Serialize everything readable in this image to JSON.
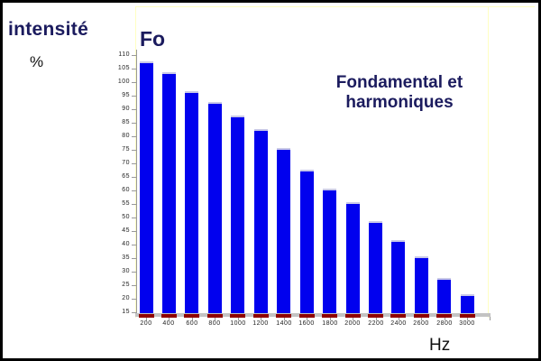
{
  "texts": {
    "y_axis_title": "intensité",
    "y_axis_unit": "%",
    "series_label": "Fo",
    "annotation": [
      "Fondamental et",
      "harmoniques"
    ],
    "x_axis_unit": "Hz"
  },
  "colors": {
    "page_bg": "#ffffff",
    "page_border": "#000000",
    "heading_navy": "#1b1b5e",
    "bar_fill": "#0101ee",
    "bar_cap": "#c9c9e8",
    "base_mark": "#8f0000",
    "baseline_gray": "#c3c3c3",
    "axis_line": "#999999",
    "plot_frame": "#ffffc2",
    "tick_label": "#222222"
  },
  "chart_data": {
    "type": "bar",
    "title": "Fondamental et harmoniques",
    "series_name": "Fo",
    "xlabel": "Hz",
    "ylabel": "intensité %",
    "categories": [
      "200",
      "400",
      "600",
      "800",
      "1000",
      "1200",
      "1400",
      "1600",
      "1800",
      "2000",
      "2200",
      "2400",
      "2600",
      "2800",
      "3000"
    ],
    "values": [
      108,
      104,
      97,
      93,
      88,
      83,
      76,
      68,
      61,
      56,
      49,
      42,
      36,
      28,
      22
    ],
    "baseline_value": 15,
    "ylim": [
      15,
      110
    ],
    "ytick_step": 5,
    "yticks": [
      110,
      105,
      100,
      95,
      90,
      85,
      80,
      75,
      70,
      65,
      60,
      55,
      50,
      45,
      40,
      35,
      30,
      25,
      20,
      15
    ],
    "grid": false,
    "legend": "none"
  }
}
